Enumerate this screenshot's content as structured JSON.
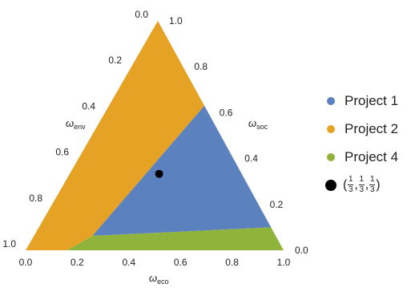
{
  "chart_data": {
    "type": "ternary-region",
    "axes": {
      "env": {
        "label": "ω",
        "sub": "env",
        "ticks": [
          "0.0",
          "0.2",
          "0.4",
          "0.6",
          "0.8",
          "1.0"
        ]
      },
      "soc": {
        "label": "ω",
        "sub": "soc",
        "ticks": [
          "1.0",
          "0.8",
          "0.6",
          "0.4",
          "0.2",
          "0.0"
        ]
      },
      "eco": {
        "label": "ω",
        "sub": "eco",
        "ticks": [
          "0.0",
          "0.2",
          "0.4",
          "0.6",
          "0.8",
          "1.0"
        ]
      }
    },
    "regions": [
      {
        "name": "Project 1",
        "color": "#5b81bf"
      },
      {
        "name": "Project 2",
        "color": "#e6a224"
      },
      {
        "name": "Project 4",
        "color": "#8fb33b"
      }
    ],
    "region_boundaries": {
      "p2_p1_top_soc": 0.63,
      "p2_p1_bottom_eco": 0.29,
      "p4_top_left_eco": 0.29,
      "p4_top_right_soc": 0.1,
      "p4_left_eco": 0.16
    },
    "point": {
      "eco": 0.5133,
      "soc": 0.3333,
      "label": {
        "open": "(",
        "num": "1",
        "den": "3",
        "sep": ",",
        "close": ")"
      }
    }
  }
}
